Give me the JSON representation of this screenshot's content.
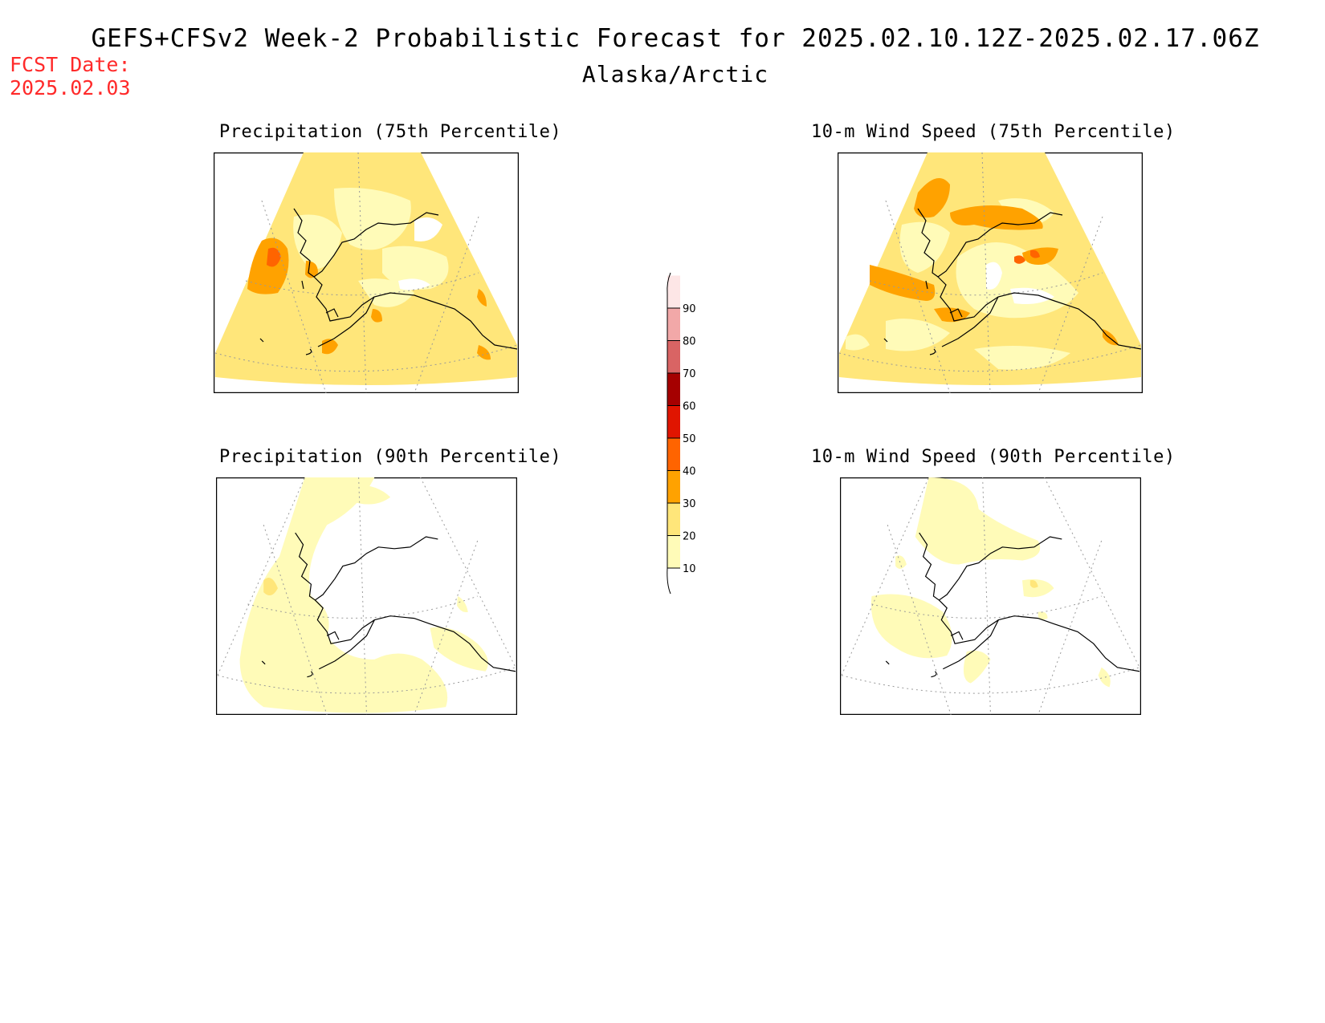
{
  "header": {
    "title": "GEFS+CFSv2 Week-2 Probabilistic Forecast for 2025.02.10.12Z-2025.02.17.06Z",
    "region": "Alaska/Arctic",
    "fcst_date_label": "FCST Date:",
    "fcst_date_value": "2025.02.03"
  },
  "panels": [
    {
      "id": "precip75",
      "title": "Precipitation (75th Percentile)"
    },
    {
      "id": "wind75",
      "title": "10-m Wind Speed (75th Percentile)"
    },
    {
      "id": "precip90",
      "title": "Precipitation (90th Percentile)"
    },
    {
      "id": "wind90",
      "title": "10-m Wind Speed (90th Percentile)"
    }
  ],
  "colorbar": {
    "levels": [
      {
        "label": "10",
        "color": "#fffbb8"
      },
      {
        "label": "20",
        "color": "#ffe67a"
      },
      {
        "label": "30",
        "color": "#ffa200"
      },
      {
        "label": "40",
        "color": "#ff6400"
      },
      {
        "label": "50",
        "color": "#e01500"
      },
      {
        "label": "60",
        "color": "#a50000"
      },
      {
        "label": "70",
        "color": "#d96464"
      },
      {
        "label": "80",
        "color": "#f2a8a8"
      },
      {
        "label": "90",
        "color": "#fde6e6"
      }
    ],
    "below_color": "#ffffff"
  }
}
